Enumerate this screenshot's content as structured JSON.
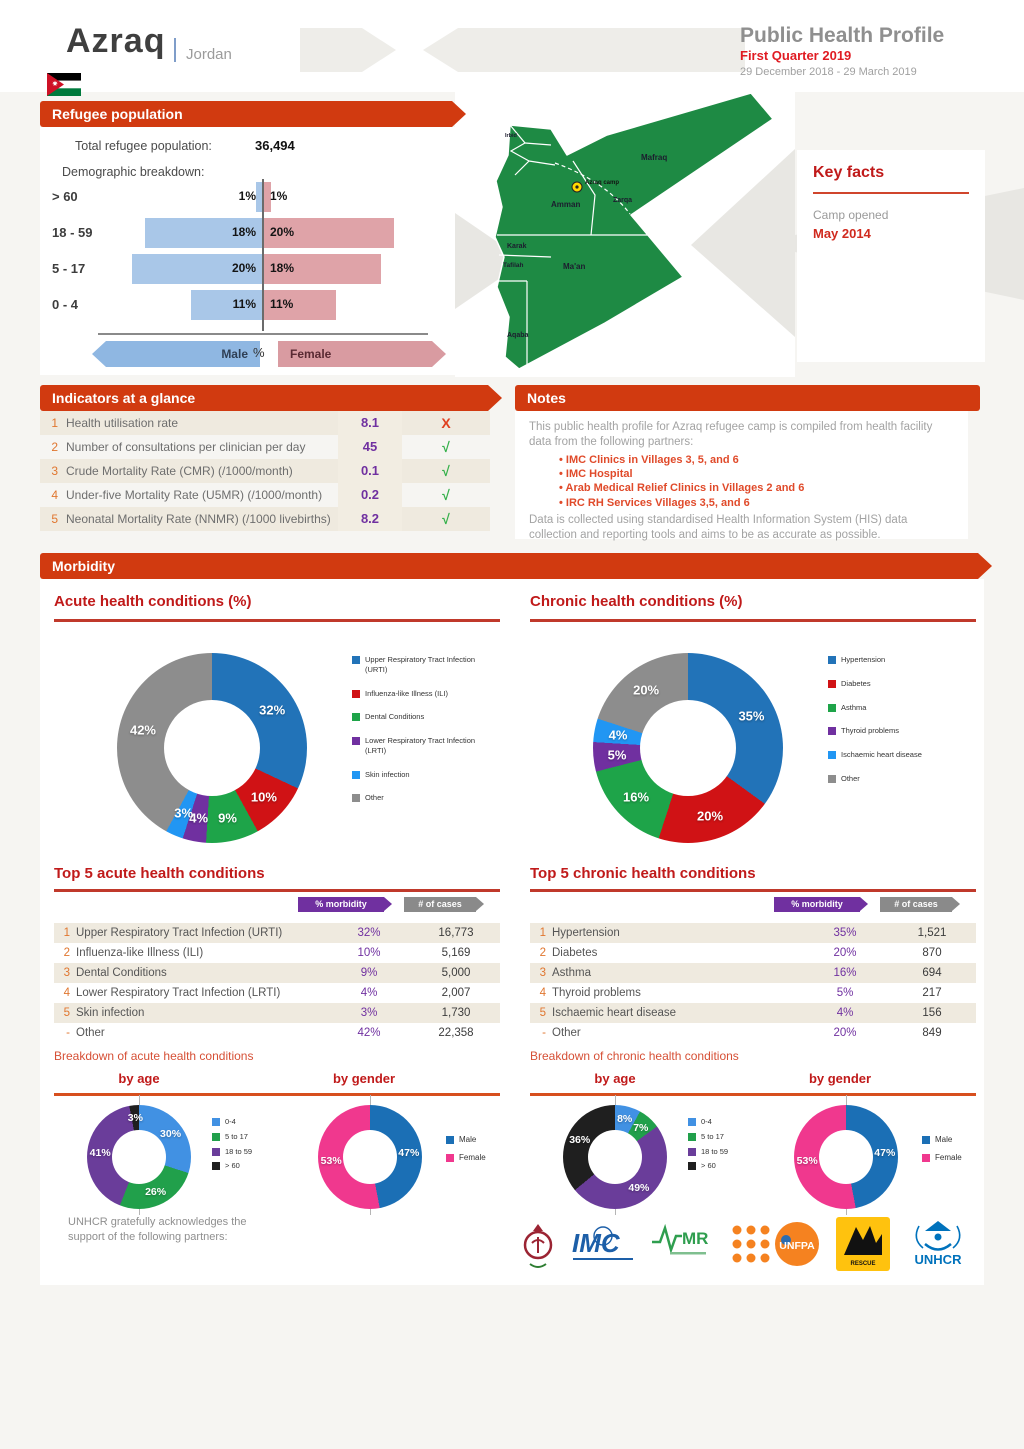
{
  "header": {
    "camp": "Azraq",
    "country": "Jordan",
    "title": "Public Health Profile",
    "quarter": "First Quarter 2019",
    "date_range": "29 December 2018 - 29 March 2019"
  },
  "refugee_population": {
    "banner": "Refugee population",
    "total_label": "Total refugee population:",
    "total_value": "36,494",
    "demographic_label": "Demographic breakdown:",
    "male_label": "Male",
    "female_label": "Female",
    "axis_label": "%"
  },
  "map": {
    "labels": [
      "Irbid",
      "Mafraq",
      "Zarqa",
      "Amman",
      "Karak",
      "Tafilah",
      "Ma'an",
      "Aqaba"
    ],
    "marker_label": "Azraq camp"
  },
  "key_facts": {
    "title": "Key facts",
    "camp_opened_label": "Camp opened",
    "camp_opened_value": "May 2014"
  },
  "indicators": {
    "banner": "Indicators at a glance",
    "pass_glyph": "√",
    "fail_glyph": "X",
    "rows": [
      {
        "num": "1",
        "label": "Health utilisation rate",
        "value": "8.1",
        "status": "fail"
      },
      {
        "num": "2",
        "label": "Number of consultations per clinician per day",
        "value": "45",
        "status": "pass"
      },
      {
        "num": "3",
        "label": "Crude Mortality Rate (CMR) (/1000/month)",
        "value": "0.1",
        "status": "pass"
      },
      {
        "num": "4",
        "label": "Under-five Mortality Rate (U5MR) (/1000/month)",
        "value": "0.2",
        "status": "pass"
      },
      {
        "num": "5",
        "label": "Neonatal Mortality Rate (NNMR) (/1000 livebirths)",
        "value": "8.2",
        "status": "pass"
      }
    ]
  },
  "notes": {
    "banner": "Notes",
    "intro": "This public health profile for Azraq refugee camp is compiled from health facility data from the following partners:",
    "partners": [
      "IMC Clinics in Villages 3, 5, and 6",
      "IMC Hospital",
      "Arab Medical Relief Clinics in Villages 2 and 6",
      "IRC RH Services Villages 3,5, and 6"
    ],
    "outro": "Data is collected using standardised Health Information System (HIS) data collection and reporting tools and aims to be as accurate as possible."
  },
  "morbidity": {
    "banner": "Morbidity",
    "acute": {
      "title": "Acute health conditions (%)",
      "table_title": "Top 5 acute health conditions",
      "col_morbidity": "% morbidity",
      "col_cases": "# of cases",
      "rows": [
        {
          "num": "1",
          "label": "Upper Respiratory Tract Infection (URTI)",
          "pct": "32%",
          "cases": "16,773"
        },
        {
          "num": "2",
          "label": "Influenza-like Illness (ILI)",
          "pct": "10%",
          "cases": "5,169"
        },
        {
          "num": "3",
          "label": "Dental Conditions",
          "pct": "9%",
          "cases": "5,000"
        },
        {
          "num": "4",
          "label": "Lower Respiratory Tract Infection (LRTI)",
          "pct": "4%",
          "cases": "2,007"
        },
        {
          "num": "5",
          "label": "Skin infection",
          "pct": "3%",
          "cases": "1,730"
        },
        {
          "num": "-",
          "label": "Other",
          "pct": "42%",
          "cases": "22,358"
        }
      ],
      "breakdown_title": "Breakdown of acute health conditions",
      "by_age_label": "by age",
      "by_gender_label": "by gender"
    },
    "chronic": {
      "title": "Chronic health conditions (%)",
      "table_title": "Top 5 chronic health conditions",
      "col_morbidity": "% morbidity",
      "col_cases": "# of cases",
      "rows": [
        {
          "num": "1",
          "label": "Hypertension",
          "pct": "35%",
          "cases": "1,521"
        },
        {
          "num": "2",
          "label": "Diabetes",
          "pct": "20%",
          "cases": "870"
        },
        {
          "num": "3",
          "label": "Asthma",
          "pct": "16%",
          "cases": "694"
        },
        {
          "num": "4",
          "label": "Thyroid problems",
          "pct": "5%",
          "cases": "217"
        },
        {
          "num": "5",
          "label": "Ischaemic heart disease",
          "pct": "4%",
          "cases": "156"
        },
        {
          "num": "-",
          "label": "Other",
          "pct": "20%",
          "cases": "849"
        }
      ],
      "breakdown_title": "Breakdown of chronic health conditions",
      "by_age_label": "by age",
      "by_gender_label": "by gender"
    }
  },
  "footer": {
    "acknowledgement": "UNHCR gratefully acknowledges the support of the following partners:",
    "logo_text": {
      "unfpa": "UNFPA",
      "unhcr": "UNHCR",
      "amr": "MR",
      "irc": "RESCUE"
    }
  },
  "colors": {
    "banner_red": "#d13a10",
    "title_red": "#c01a1a",
    "value_purple": "#7030a0",
    "pass_green": "#35b04a",
    "fail_red": "#e0401f",
    "male_bar": "#a9c7e8",
    "female_bar": "#dfa3a8",
    "map_green": "#1e8a44"
  },
  "chart_data": [
    {
      "id": "population_pyramid",
      "type": "bar",
      "title": "Demographic breakdown",
      "orientation": "horizontal-pyramid",
      "categories": [
        "> 60",
        "18 - 59",
        "5 - 17",
        "0 - 4"
      ],
      "series": [
        {
          "name": "Male",
          "values": [
            1,
            18,
            20,
            11
          ]
        },
        {
          "name": "Female",
          "values": [
            1,
            20,
            18,
            11
          ]
        }
      ],
      "unit": "%"
    },
    {
      "id": "acute_conditions",
      "type": "pie",
      "title": "Acute health conditions (%)",
      "labels": [
        "Upper Respiratory Tract Infection (URTI)",
        "Influenza-like Illness (ILI)",
        "Dental Conditions",
        "Lower Respiratory Tract Infection (LRTI)",
        "Skin infection",
        "Other"
      ],
      "values": [
        32,
        10,
        9,
        4,
        3,
        42
      ],
      "colors": [
        "#2273b8",
        "#d01215",
        "#1ea449",
        "#7030a0",
        "#2196f3",
        "#8d8d8d"
      ],
      "legend_position": "right"
    },
    {
      "id": "chronic_conditions",
      "type": "pie",
      "title": "Chronic health conditions (%)",
      "labels": [
        "Hypertension",
        "Diabetes",
        "Asthma",
        "Thyroid problems",
        "Ischaemic heart disease",
        "Other"
      ],
      "values": [
        35,
        20,
        16,
        5,
        4,
        20
      ],
      "colors": [
        "#2273b8",
        "#d01215",
        "#1ea449",
        "#7030a0",
        "#2196f3",
        "#8d8d8d"
      ],
      "legend_position": "right"
    },
    {
      "id": "acute_by_age",
      "type": "pie",
      "title": "Breakdown of acute health conditions by age",
      "labels": [
        "0-4",
        "5 to 17",
        "18 to 59",
        "> 60"
      ],
      "values": [
        30,
        26,
        41,
        3
      ],
      "colors": [
        "#4191e3",
        "#21a04b",
        "#6a3d9a",
        "#1f1f1f"
      ],
      "legend_position": "right"
    },
    {
      "id": "acute_by_gender",
      "type": "pie",
      "title": "Breakdown of acute health conditions by gender",
      "labels": [
        "Male",
        "Female"
      ],
      "values": [
        47,
        53
      ],
      "colors": [
        "#1b6fb5",
        "#f0388e"
      ],
      "legend_position": "right"
    },
    {
      "id": "chronic_by_age",
      "type": "pie",
      "title": "Breakdown of chronic health conditions by age",
      "labels": [
        "0-4",
        "5 to 17",
        "18 to 59",
        "> 60"
      ],
      "values": [
        8,
        7,
        49,
        36
      ],
      "colors": [
        "#4191e3",
        "#21a04b",
        "#6a3d9a",
        "#1f1f1f"
      ],
      "legend_position": "right"
    },
    {
      "id": "chronic_by_gender",
      "type": "pie",
      "title": "Breakdown of chronic health conditions by gender",
      "labels": [
        "Male",
        "Female"
      ],
      "values": [
        47,
        53
      ],
      "colors": [
        "#1b6fb5",
        "#f0388e"
      ],
      "legend_position": "right"
    }
  ]
}
